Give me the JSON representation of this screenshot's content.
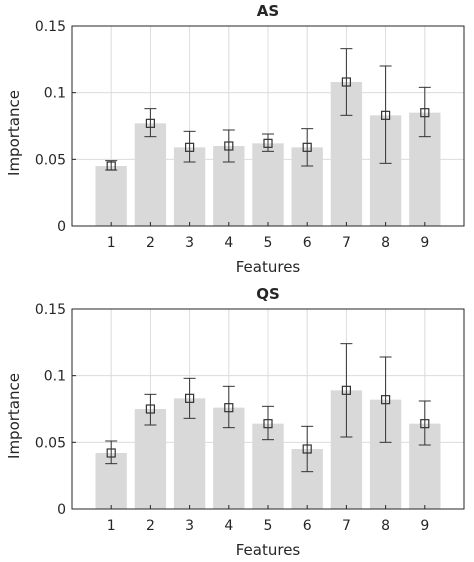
{
  "colors": {
    "bar": "#d9d9d9",
    "errorbar": "#333333",
    "grid": "#dcdcdc",
    "axis": "#262626",
    "background": "#ffffff"
  },
  "chart_data": [
    {
      "type": "bar",
      "title": "AS",
      "xlabel": "Features",
      "ylabel": "Importance",
      "categories": [
        "1",
        "2",
        "3",
        "4",
        "5",
        "6",
        "7",
        "8",
        "9"
      ],
      "values": [
        0.045,
        0.077,
        0.059,
        0.06,
        0.062,
        0.059,
        0.108,
        0.083,
        0.085
      ],
      "error_low": [
        0.042,
        0.067,
        0.048,
        0.048,
        0.056,
        0.045,
        0.083,
        0.047,
        0.067
      ],
      "error_high": [
        0.049,
        0.088,
        0.071,
        0.072,
        0.069,
        0.073,
        0.133,
        0.12,
        0.104
      ],
      "ylim": [
        0,
        0.15
      ],
      "yticks": [
        "0",
        "0.05",
        "0.1",
        "0.15"
      ],
      "grid": true,
      "marker": "square"
    },
    {
      "type": "bar",
      "title": "QS",
      "xlabel": "Features",
      "ylabel": "Importance",
      "categories": [
        "1",
        "2",
        "3",
        "4",
        "5",
        "6",
        "7",
        "8",
        "9"
      ],
      "values": [
        0.042,
        0.075,
        0.083,
        0.076,
        0.064,
        0.045,
        0.089,
        0.082,
        0.064
      ],
      "error_low": [
        0.034,
        0.063,
        0.068,
        0.061,
        0.052,
        0.028,
        0.054,
        0.05,
        0.048
      ],
      "error_high": [
        0.051,
        0.086,
        0.098,
        0.092,
        0.077,
        0.062,
        0.124,
        0.114,
        0.081
      ],
      "ylim": [
        0,
        0.15
      ],
      "yticks": [
        "0",
        "0.05",
        "0.1",
        "0.15"
      ],
      "grid": true,
      "marker": "square"
    }
  ]
}
